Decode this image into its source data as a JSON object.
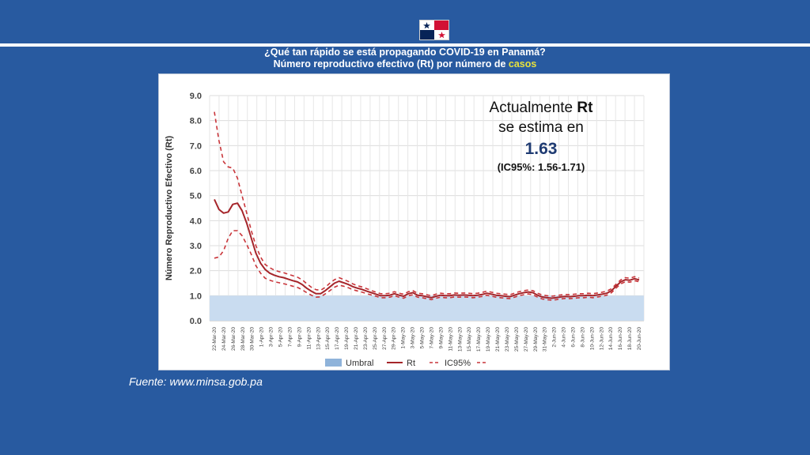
{
  "header": {
    "title_line1": "¿Qué tan rápido se está propagando COVID-19  en Panamá?",
    "title_line2_prefix": "Número reproductivo efectivo (Rt) por número de ",
    "title_line2_highlight": "casos"
  },
  "annotation": {
    "line1_text": "Actualmente ",
    "line1_bold": "Rt",
    "line2": "se estima en",
    "value": "1.63",
    "ci": "(IC95%: 1.56-1.71)"
  },
  "source": "Fuente: www.minsa.gob.pa",
  "colors": {
    "background": "#285aa0",
    "rt_line": "#a5252a",
    "ci_line": "#c9353a",
    "threshold_fill": "#c9dcf0",
    "title_highlight": "#e8e23c"
  },
  "chart_data": {
    "type": "line",
    "ylabel": "Número Reproductivo Efectivo (Rt)",
    "ylim": [
      0,
      9
    ],
    "yticks": [
      "0.0",
      "1.0",
      "2.0",
      "3.0",
      "4.0",
      "5.0",
      "6.0",
      "7.0",
      "8.0",
      "9.0"
    ],
    "grid": true,
    "legend_position": "bottom",
    "x_tick_labels": [
      "22-Mar-20",
      "24-Mar-20",
      "26-Mar-20",
      "28-Mar-20",
      "30-Mar-20",
      "1-Apr-20",
      "3-Apr-20",
      "5-Apr-20",
      "7-Apr-20",
      "9-Apr-20",
      "11-Apr-20",
      "13-Apr-20",
      "15-Apr-20",
      "17-Apr-20",
      "19-Apr-20",
      "21-Apr-20",
      "23-Apr-20",
      "25-Apr-20",
      "27-Apr-20",
      "29-Apr-20",
      "1-May-20",
      "3-May-20",
      "5-May-20",
      "7-May-20",
      "9-May-20",
      "11-May-20",
      "13-May-20",
      "15-May-20",
      "17-May-20",
      "19-May-20",
      "21-May-20",
      "23-May-20",
      "25-May-20",
      "27-May-20",
      "29-May-20",
      "31-May-20",
      "2-Jun-20",
      "4-Jun-20",
      "6-Jun-20",
      "8-Jun-20",
      "10-Jun-20",
      "12-Jun-20",
      "14-Jun-20",
      "16-Jun-20",
      "18-Jun-20",
      "20-Jun-20"
    ],
    "threshold": {
      "name": "Umbral",
      "value": 1.0
    },
    "series": [
      {
        "name": "Rt",
        "values": [
          4.85,
          4.45,
          4.3,
          4.35,
          4.65,
          4.7,
          4.4,
          3.9,
          3.3,
          2.7,
          2.3,
          2.05,
          1.9,
          1.82,
          1.76,
          1.72,
          1.66,
          1.6,
          1.55,
          1.45,
          1.3,
          1.18,
          1.08,
          1.08,
          1.2,
          1.35,
          1.5,
          1.58,
          1.52,
          1.45,
          1.36,
          1.3,
          1.25,
          1.18,
          1.12,
          1.06,
          1.0,
          1.0,
          1.02,
          1.08,
          1.02,
          0.98,
          1.08,
          1.12,
          1.02,
          1.0,
          0.96,
          0.92,
          0.98,
          1.02,
          1.0,
          1.0,
          1.03,
          1.02,
          1.03,
          1.02,
          1.0,
          1.02,
          1.05,
          1.1,
          1.06,
          1.02,
          1.0,
          0.98,
          0.96,
          1.02,
          1.08,
          1.12,
          1.15,
          1.12,
          1.02,
          0.95,
          0.92,
          0.9,
          0.92,
          0.95,
          0.97,
          0.96,
          0.98,
          1.0,
          1.0,
          1.02,
          1.0,
          1.03,
          1.06,
          1.1,
          1.2,
          1.38,
          1.55,
          1.64,
          1.62,
          1.68,
          1.63
        ]
      },
      {
        "name": "IC95%",
        "values": [
          8.35,
          7.2,
          6.35,
          6.15,
          6.1,
          5.7,
          5.0,
          4.3,
          3.6,
          3.0,
          2.55,
          2.25,
          2.12,
          2.02,
          1.96,
          1.92,
          1.86,
          1.8,
          1.74,
          1.64,
          1.48,
          1.34,
          1.24,
          1.22,
          1.33,
          1.5,
          1.64,
          1.72,
          1.65,
          1.57,
          1.47,
          1.4,
          1.35,
          1.28,
          1.21,
          1.14,
          1.08,
          1.08,
          1.1,
          1.16,
          1.1,
          1.06,
          1.16,
          1.2,
          1.1,
          1.08,
          1.04,
          1.0,
          1.06,
          1.1,
          1.08,
          1.08,
          1.11,
          1.1,
          1.11,
          1.1,
          1.08,
          1.1,
          1.13,
          1.18,
          1.14,
          1.1,
          1.08,
          1.06,
          1.04,
          1.1,
          1.16,
          1.2,
          1.23,
          1.2,
          1.1,
          1.03,
          1.0,
          0.98,
          1.0,
          1.03,
          1.05,
          1.04,
          1.06,
          1.08,
          1.08,
          1.1,
          1.08,
          1.11,
          1.14,
          1.18,
          1.28,
          1.46,
          1.63,
          1.72,
          1.7,
          1.76,
          1.71
        ]
      },
      {
        "name": "IC95% lower",
        "values": [
          2.5,
          2.55,
          2.8,
          3.3,
          3.6,
          3.6,
          3.4,
          3.05,
          2.65,
          2.2,
          1.9,
          1.7,
          1.62,
          1.56,
          1.52,
          1.48,
          1.43,
          1.38,
          1.33,
          1.24,
          1.12,
          1.02,
          0.94,
          0.95,
          1.07,
          1.2,
          1.34,
          1.42,
          1.38,
          1.32,
          1.24,
          1.19,
          1.14,
          1.08,
          1.03,
          0.98,
          0.92,
          0.92,
          0.94,
          1.0,
          0.94,
          0.9,
          1.0,
          1.04,
          0.94,
          0.92,
          0.88,
          0.84,
          0.9,
          0.94,
          0.92,
          0.92,
          0.95,
          0.94,
          0.95,
          0.94,
          0.92,
          0.94,
          0.97,
          1.02,
          0.98,
          0.94,
          0.92,
          0.9,
          0.88,
          0.94,
          1.0,
          1.04,
          1.07,
          1.04,
          0.94,
          0.87,
          0.84,
          0.82,
          0.84,
          0.87,
          0.89,
          0.88,
          0.9,
          0.92,
          0.92,
          0.94,
          0.92,
          0.95,
          0.98,
          1.02,
          1.12,
          1.3,
          1.47,
          1.56,
          1.54,
          1.6,
          1.56
        ]
      }
    ],
    "legend": [
      "Umbral",
      "Rt",
      "IC95%"
    ]
  }
}
